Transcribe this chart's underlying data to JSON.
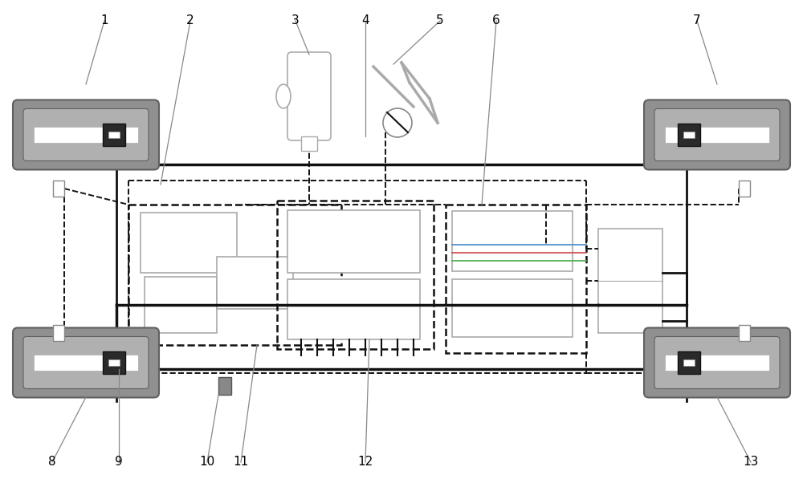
{
  "bg_color": "#ffffff",
  "wheel_fill": "#909090",
  "wheel_edge": "#606060",
  "hub_fill": "#2a2a2a",
  "hub_edge": "#111111",
  "white_fill": "#ffffff",
  "box_edge": "#aaaaaa",
  "box_fill": "#ffffff",
  "dashed_color": "#111111",
  "solid_color": "#111111",
  "thick_color": "#111111",
  "blue_line": "#4488cc",
  "red_line": "#cc4444",
  "green_line": "#44aa44",
  "label_color": "#000000",
  "leader_color": "#888888"
}
